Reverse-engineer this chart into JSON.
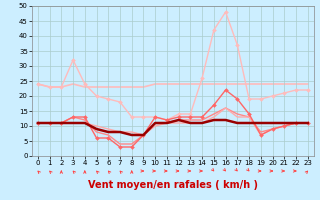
{
  "background_color": "#cceeff",
  "grid_color": "#aacccc",
  "xlim": [
    -0.5,
    23.5
  ],
  "ylim": [
    0,
    50
  ],
  "yticks": [
    0,
    5,
    10,
    15,
    20,
    25,
    30,
    35,
    40,
    45,
    50
  ],
  "xticks": [
    0,
    1,
    2,
    3,
    4,
    5,
    6,
    7,
    8,
    9,
    10,
    11,
    12,
    13,
    14,
    15,
    16,
    17,
    18,
    19,
    20,
    21,
    22,
    23
  ],
  "xlabel": "Vent moyen/en rafales ( km/h )",
  "xlabel_color": "#cc0000",
  "xlabel_fontsize": 7,
  "series": [
    {
      "x": [
        0,
        1,
        2,
        3,
        4,
        5,
        6,
        7,
        8,
        9,
        10,
        11,
        12,
        13,
        14,
        15,
        16,
        17,
        18,
        19,
        20,
        21,
        22,
        23
      ],
      "y": [
        24,
        23,
        23,
        24,
        23,
        23,
        23,
        23,
        23,
        23,
        24,
        24,
        24,
        24,
        24,
        24,
        24,
        24,
        24,
        24,
        24,
        24,
        24,
        24
      ],
      "color": "#ffbbbb",
      "lw": 1.2,
      "marker": null,
      "zorder": 1
    },
    {
      "x": [
        0,
        1,
        2,
        3,
        4,
        5,
        6,
        7,
        8,
        9,
        10,
        11,
        12,
        13,
        14,
        15,
        16,
        17,
        18,
        19,
        20,
        21,
        22,
        23
      ],
      "y": [
        24,
        23,
        23,
        32,
        24,
        20,
        19,
        18,
        13,
        13,
        13,
        12,
        14,
        14,
        26,
        42,
        48,
        37,
        19,
        19,
        20,
        21,
        22,
        22
      ],
      "color": "#ffbbbb",
      "lw": 1.0,
      "marker": "D",
      "markersize": 2.0,
      "zorder": 2
    },
    {
      "x": [
        0,
        1,
        2,
        3,
        4,
        5,
        6,
        7,
        8,
        9,
        10,
        11,
        12,
        13,
        14,
        15,
        16,
        17,
        18,
        19,
        20,
        21,
        22,
        23
      ],
      "y": [
        11,
        11,
        11,
        13,
        13,
        6,
        6,
        3,
        3,
        7,
        13,
        12,
        13,
        13,
        13,
        17,
        22,
        19,
        14,
        7,
        9,
        10,
        11,
        11
      ],
      "color": "#ff6666",
      "lw": 1.0,
      "marker": "D",
      "markersize": 2.0,
      "zorder": 3
    },
    {
      "x": [
        0,
        1,
        2,
        3,
        4,
        5,
        6,
        7,
        8,
        9,
        10,
        11,
        12,
        13,
        14,
        15,
        16,
        17,
        18,
        19,
        20,
        21,
        22,
        23
      ],
      "y": [
        11,
        11,
        11,
        13,
        12,
        8,
        7,
        4,
        4,
        7,
        11,
        11,
        12,
        12,
        12,
        14,
        16,
        14,
        13,
        8,
        9,
        10,
        11,
        11
      ],
      "color": "#ff8888",
      "lw": 1.0,
      "marker": null,
      "zorder": 2
    },
    {
      "x": [
        0,
        1,
        2,
        3,
        4,
        5,
        6,
        7,
        8,
        9,
        10,
        11,
        12,
        13,
        14,
        15,
        16,
        17,
        18,
        19,
        20,
        21,
        22,
        23
      ],
      "y": [
        11,
        11,
        11,
        11,
        11,
        9,
        8,
        8,
        7,
        7,
        11,
        11,
        12,
        11,
        11,
        12,
        12,
        11,
        11,
        11,
        11,
        11,
        11,
        11
      ],
      "color": "#990000",
      "lw": 1.8,
      "marker": null,
      "zorder": 4
    },
    {
      "x": [
        0,
        1,
        2,
        3,
        4,
        5,
        6,
        7,
        8,
        9,
        10,
        11,
        12,
        13,
        14,
        15,
        16,
        17,
        18,
        19,
        20,
        21,
        22,
        23
      ],
      "y": [
        11,
        11,
        11,
        11,
        11,
        10,
        9,
        8,
        8,
        7,
        10,
        11,
        11,
        11,
        11,
        13,
        16,
        13,
        13,
        7,
        9,
        10,
        11,
        11
      ],
      "color": "#ffaaaa",
      "lw": 1.0,
      "marker": null,
      "zorder": 2
    }
  ],
  "wind_arrows": {
    "x": [
      0,
      1,
      2,
      3,
      4,
      5,
      6,
      7,
      8,
      9,
      10,
      11,
      12,
      13,
      14,
      15,
      16,
      17,
      18,
      19,
      20,
      21,
      22,
      23
    ],
    "angles_deg": [
      315,
      315,
      0,
      315,
      0,
      315,
      315,
      315,
      0,
      90,
      90,
      90,
      90,
      90,
      90,
      135,
      135,
      135,
      135,
      90,
      90,
      90,
      90,
      45
    ],
    "color": "#ff4444",
    "size": 4
  }
}
